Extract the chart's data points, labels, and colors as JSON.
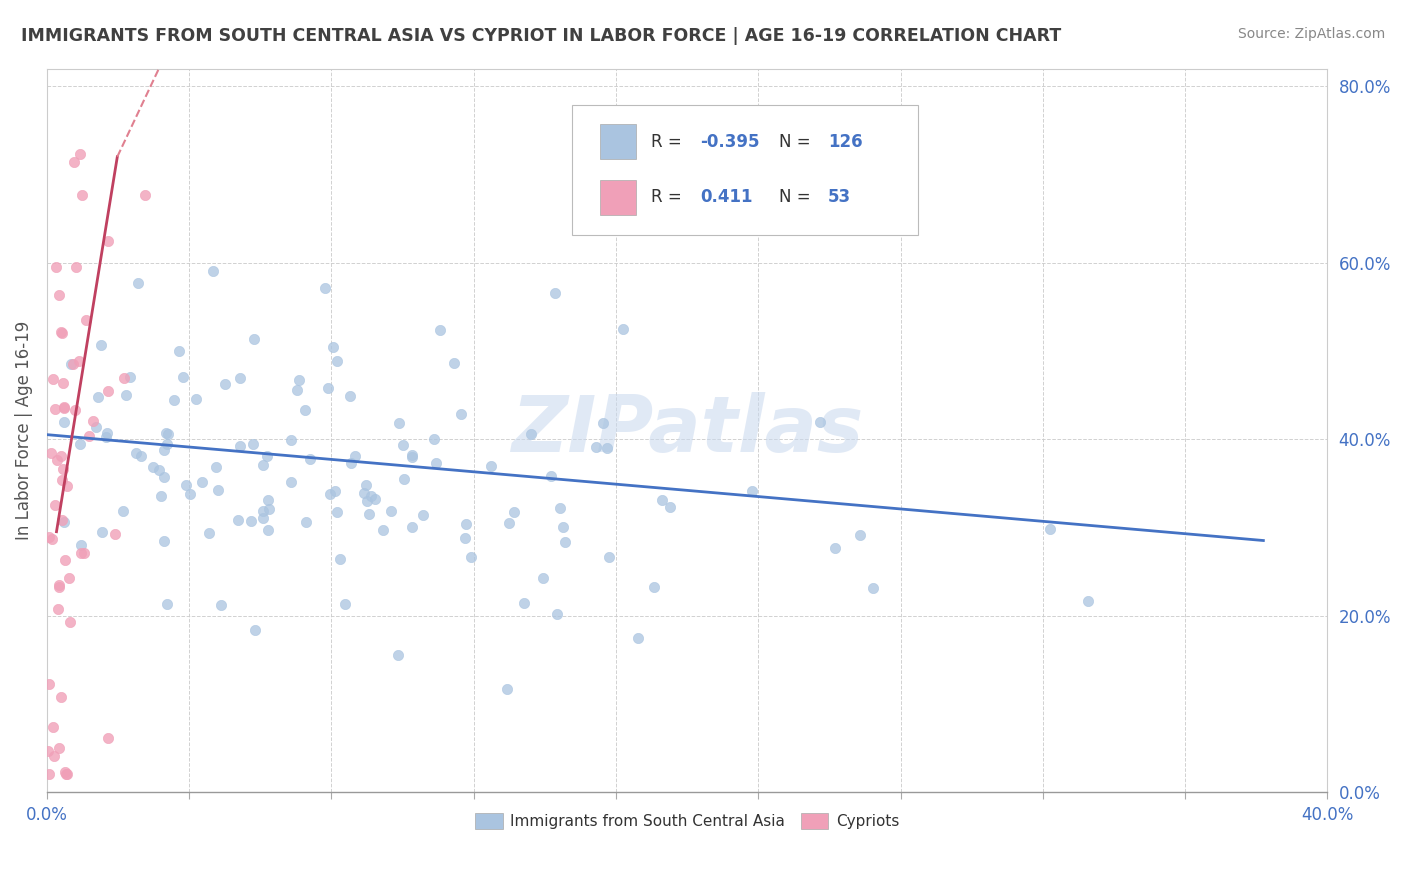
{
  "title": "IMMIGRANTS FROM SOUTH CENTRAL ASIA VS CYPRIOT IN LABOR FORCE | AGE 16-19 CORRELATION CHART",
  "source": "Source: ZipAtlas.com",
  "ylabel": "In Labor Force | Age 16-19",
  "xlim": [
    0.0,
    0.4
  ],
  "ylim": [
    0.0,
    0.82
  ],
  "xticks": [
    0.0,
    0.04444,
    0.08889,
    0.13333,
    0.17778,
    0.22222,
    0.26667,
    0.31111,
    0.35556,
    0.4
  ],
  "xtick_labels_show": [
    "0.0%",
    "",
    "",
    "",
    "",
    "",
    "",
    "",
    "",
    "40.0%"
  ],
  "yticks": [
    0.0,
    0.2,
    0.4,
    0.6,
    0.8
  ],
  "ytick_labels": [
    "0.0%",
    "20.0%",
    "40.0%",
    "60.0%",
    "80.0%"
  ],
  "blue_color": "#aac4e0",
  "pink_color": "#f0a0b8",
  "blue_line_color": "#4472c4",
  "pink_line_color": "#c04060",
  "pink_line_dashed_color": "#e08090",
  "R_blue": -0.395,
  "N_blue": 126,
  "R_pink": 0.411,
  "N_pink": 53,
  "legend_label_blue": "Immigrants from South Central Asia",
  "legend_label_pink": "Cypriots",
  "watermark": "ZIPatlas",
  "blue_scatter_seed": 42,
  "pink_scatter_seed": 7,
  "background_color": "#ffffff",
  "grid_color": "#cccccc",
  "title_color": "#404040",
  "axis_label_color": "#4472c4",
  "legend_text_color": "#4472c4"
}
